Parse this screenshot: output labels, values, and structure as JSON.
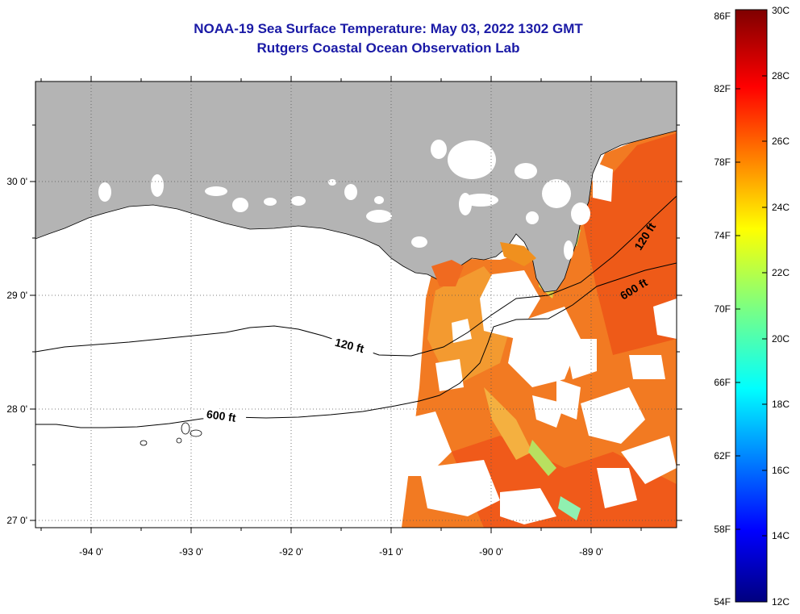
{
  "header": {
    "title": "NOAA-19 Sea Surface Temperature:  May 03, 2022 1302 GMT",
    "subtitle": "Rutgers Coastal Ocean Observation Lab"
  },
  "map": {
    "longitude_labels": [
      "-94 0'",
      "-93 0'",
      "-92 0'",
      "-91 0'",
      "-90 0'",
      "-89 0'"
    ],
    "latitude_labels": [
      "30 0'",
      "29 0'",
      "28 0'",
      "27 0'"
    ],
    "contours": [
      {
        "label": "120 ft",
        "depth_ft": 120
      },
      {
        "label": "600 ft",
        "depth_ft": 600
      }
    ],
    "land_color": "#b4b4b4",
    "no_data_color": "#ffffff"
  },
  "colorbar": {
    "fahrenheit_labels": [
      "86F",
      "82F",
      "78F",
      "74F",
      "70F",
      "66F",
      "62F",
      "58F",
      "54F"
    ],
    "celsius_labels": [
      "30C",
      "28C",
      "26C",
      "24C",
      "22C",
      "20C",
      "18C",
      "16C",
      "14C",
      "12C"
    ],
    "range_f": [
      54,
      86
    ],
    "range_c": [
      12,
      30
    ]
  }
}
